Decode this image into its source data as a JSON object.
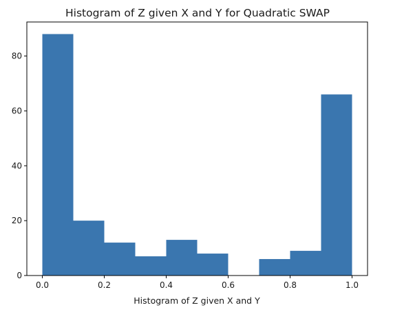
{
  "chart_data": {
    "type": "bar",
    "subtype": "histogram",
    "title": "Histogram of Z given X and Y for Quadratic SWAP",
    "xlabel": "Histogram of Z given X and Y",
    "ylabel": "",
    "bin_edges": [
      0.0,
      0.1,
      0.2,
      0.3,
      0.4,
      0.5,
      0.6,
      0.7,
      0.8,
      0.9,
      1.0
    ],
    "values": [
      88,
      20,
      12,
      7,
      13,
      8,
      0,
      6,
      9,
      66
    ],
    "xlim": [
      -0.05,
      1.05
    ],
    "ylim": [
      0,
      92.4
    ],
    "xticks": [
      0.0,
      0.2,
      0.4,
      0.6,
      0.8,
      1.0
    ],
    "xtick_labels": [
      "0.0",
      "0.2",
      "0.4",
      "0.6",
      "0.8",
      "1.0"
    ],
    "yticks": [
      0,
      20,
      40,
      60,
      80
    ],
    "ytick_labels": [
      "0",
      "20",
      "40",
      "60",
      "80"
    ],
    "bar_color": "#3a76af",
    "grid": false,
    "legend": "none"
  }
}
